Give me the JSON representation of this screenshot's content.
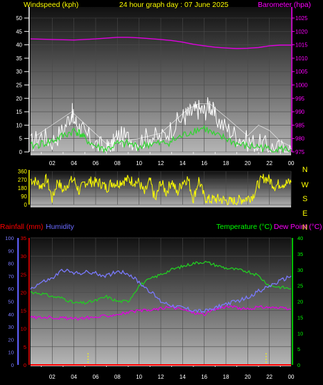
{
  "header": {
    "left_label": "Windspeed (kph)",
    "title": "24 hour graph day : 07 June 2025",
    "right_label": "Barometer (hpa)"
  },
  "colors": {
    "background": "#000000",
    "plot_top": "#101010",
    "plot_bottom": "#b4b4b4",
    "white": "#ffffff",
    "yellow": "#ffff00",
    "magenta": "#ff00ff",
    "red": "#ff0000",
    "blue": "#6060ff",
    "green": "#00ff00",
    "windspeed": "#ffffff",
    "windavg": "#2fd62f",
    "barometer": "#e000e0",
    "direction": "#ffff00",
    "temperature": "#22cc22",
    "dewpoint": "#e000e0",
    "humidity": "#7a7aff",
    "rainfall": "#ff0000",
    "tick_left": "#ffffff",
    "tick_right": "#ff00ff"
  },
  "chart_data": [
    {
      "name": "wind-barometer",
      "type": "line",
      "title": "24 hour graph day : 07 June 2025",
      "x_ticks": [
        "02",
        "04",
        "06",
        "08",
        "10",
        "12",
        "14",
        "16",
        "18",
        "20",
        "22",
        "00"
      ],
      "xlim": [
        0,
        24
      ],
      "y_left": {
        "label": "Windspeed (kph)",
        "ticks": [
          "0",
          "5",
          "10",
          "15",
          "20",
          "25",
          "30",
          "35",
          "40",
          "45",
          "50"
        ],
        "ylim": [
          0,
          50
        ]
      },
      "y_right": {
        "label": "Barometer (hpa)",
        "ticks": [
          "975",
          "980",
          "985",
          "990",
          "995",
          "1000",
          "1005",
          "1010",
          "1015",
          "1020",
          "1025"
        ],
        "ylim": [
          975,
          1025
        ]
      },
      "series": [
        {
          "name": "Windspeed (kph)",
          "axis": "left",
          "color_key": "windspeed",
          "x": [
            0,
            1,
            2,
            3,
            3.8,
            4,
            4.5,
            5,
            6,
            7,
            7.5,
            8,
            9,
            10,
            11,
            12,
            13,
            14,
            14.5,
            15,
            15.5,
            16,
            16.5,
            17,
            18,
            19,
            20,
            21,
            22,
            23,
            24
          ],
          "y": [
            3,
            6,
            4,
            8,
            15,
            12,
            9,
            7,
            3,
            1,
            2,
            6,
            5,
            4,
            6,
            5,
            9,
            13,
            14,
            15,
            16,
            15,
            18,
            13,
            9,
            6,
            4,
            3,
            2,
            1,
            1
          ]
        },
        {
          "name": "Wind gust",
          "axis": "left",
          "color_key": "windspeed",
          "x": [
            0.5,
            3.8,
            7,
            10,
            12,
            14.5,
            15.5,
            16.5,
            18,
            20,
            21,
            22,
            23,
            24
          ],
          "y": [
            6,
            15,
            3,
            5,
            7,
            16,
            18,
            18,
            13,
            6,
            10,
            8,
            4,
            2
          ]
        },
        {
          "name": "Wind average",
          "axis": "left",
          "color_key": "windavg",
          "x": [
            0,
            1,
            2,
            3,
            4,
            4.5,
            5,
            6,
            7,
            8,
            9,
            10,
            11,
            12,
            13,
            14,
            15,
            16,
            17,
            18,
            19,
            20,
            21,
            22,
            23,
            24
          ],
          "y": [
            2,
            3,
            4,
            6,
            8,
            7,
            5,
            2,
            1,
            3,
            3,
            2,
            3,
            3,
            4,
            6,
            8,
            9,
            6,
            5,
            3,
            2,
            2,
            1,
            1,
            1
          ]
        },
        {
          "name": "Barometer (hpa)",
          "axis": "right",
          "color_key": "barometer",
          "x": [
            0,
            2,
            4,
            6,
            8,
            9,
            10,
            12,
            13,
            14,
            15,
            16,
            17,
            18,
            19,
            20,
            21,
            22,
            23,
            24
          ],
          "y": [
            1017.2,
            1017.0,
            1016.8,
            1017.2,
            1017.8,
            1017.8,
            1017.6,
            1017.0,
            1016.6,
            1016.0,
            1015.2,
            1014.6,
            1014.1,
            1013.8,
            1013.6,
            1013.7,
            1014.0,
            1014.6,
            1014.9,
            1014.9
          ]
        }
      ]
    },
    {
      "name": "wind-direction",
      "type": "scatter",
      "x_ticks": [
        "02",
        "04",
        "06",
        "08",
        "10",
        "12",
        "14",
        "16",
        "18",
        "20",
        "22",
        "00"
      ],
      "xlim": [
        0,
        24
      ],
      "y_ticks": [
        "0",
        "90",
        "180",
        "270",
        "360"
      ],
      "ylim": [
        0,
        360
      ],
      "right_labels": [
        "N",
        "W",
        "S",
        "E",
        "N"
      ],
      "series": [
        {
          "name": "Wind direction",
          "color_key": "direction",
          "x": [
            0,
            0.5,
            1,
            1.5,
            2,
            2.5,
            3,
            3.5,
            4,
            4.5,
            5,
            5.5,
            6,
            6.5,
            7,
            7.5,
            8,
            8.5,
            9,
            9.5,
            10,
            10.5,
            11,
            11.5,
            12,
            12.5,
            13,
            13.5,
            14,
            14.5,
            15,
            15.5,
            16,
            16.5,
            17,
            17.5,
            18,
            18.5,
            19,
            19.5,
            20,
            20.5,
            21,
            21.5,
            22,
            22.5,
            23,
            23.5,
            24
          ],
          "y": [
            270,
            250,
            200,
            280,
            60,
            260,
            150,
            240,
            270,
            140,
            240,
            250,
            240,
            230,
            180,
            240,
            230,
            260,
            270,
            250,
            240,
            120,
            260,
            40,
            250,
            130,
            260,
            120,
            250,
            280,
            60,
            270,
            80,
            50,
            60,
            60,
            40,
            30,
            40,
            60,
            70,
            100,
            230,
            290,
            270,
            200,
            230,
            230,
            240
          ]
        }
      ]
    },
    {
      "name": "rain-humidity-temperature",
      "type": "line",
      "x_ticks": [
        "02",
        "04",
        "06",
        "08",
        "10",
        "12",
        "14",
        "16",
        "18",
        "20",
        "22",
        "00"
      ],
      "xlim": [
        0,
        24
      ],
      "y_humidity": {
        "label": "Humidity",
        "ticks": [
          "0",
          "10",
          "20",
          "30",
          "40",
          "50",
          "60",
          "70",
          "80",
          "90",
          "100"
        ],
        "ylim": [
          0,
          100
        ]
      },
      "y_rain": {
        "label": "Rainfall (mm)",
        "ticks": [
          "0",
          "5",
          "10",
          "15",
          "20",
          "25",
          "30",
          "35"
        ],
        "ylim": [
          0,
          35
        ]
      },
      "y_temp": {
        "label": "Temperature (°C)",
        "ticks": [
          "0",
          "5",
          "10",
          "15",
          "20",
          "25",
          "30",
          "35",
          "40"
        ],
        "ylim": [
          0,
          40
        ]
      },
      "dewpoint_label": "Dew Point (°C)",
      "series": [
        {
          "name": "Temperature (°C)",
          "axis": "temp",
          "color_key": "temperature",
          "x": [
            0,
            1,
            2,
            3,
            4,
            5,
            6,
            7,
            8,
            9,
            10,
            11,
            12,
            13,
            14,
            15,
            16,
            17,
            18,
            19,
            20,
            21,
            22,
            23,
            24
          ],
          "y": [
            23,
            22.5,
            21.5,
            21,
            19.5,
            19.5,
            20.2,
            21.5,
            20,
            20,
            25,
            27,
            28.5,
            30,
            31,
            32,
            32.5,
            31.5,
            30.5,
            30,
            29.5,
            28,
            25,
            24.5,
            24
          ]
        },
        {
          "name": "Dew Point (°C)",
          "axis": "temp",
          "color_key": "dewpoint",
          "x": [
            0,
            1,
            2,
            3,
            4,
            5,
            6,
            7,
            8,
            9,
            10,
            11,
            12,
            13,
            14,
            15,
            16,
            17,
            18,
            19,
            20,
            21,
            22,
            23,
            24
          ],
          "y": [
            15,
            15,
            15,
            14.8,
            14.5,
            14.8,
            15,
            15.5,
            16,
            16.5,
            17,
            17.2,
            17.8,
            18.2,
            17.5,
            16.5,
            16,
            17.5,
            18.5,
            18,
            17.5,
            18.2,
            18.2,
            17.8,
            17.5
          ]
        },
        {
          "name": "Humidity",
          "axis": "humidity",
          "color_key": "humidity",
          "x": [
            0,
            1,
            2,
            3,
            4,
            5,
            6,
            7,
            8,
            9,
            10,
            11,
            12,
            13,
            14,
            15,
            16,
            17,
            18,
            19,
            20,
            21,
            22,
            23,
            24
          ],
          "y": [
            60,
            65,
            68,
            75,
            72,
            73,
            72,
            70,
            74,
            72,
            65,
            58,
            50,
            47,
            45,
            43,
            42,
            45,
            48,
            50,
            53,
            58,
            62,
            66,
            70
          ]
        },
        {
          "name": "Rainfall (mm)",
          "axis": "rain",
          "color_key": "rainfall",
          "x": [
            0,
            24
          ],
          "y": [
            0,
            0
          ]
        }
      ]
    }
  ]
}
